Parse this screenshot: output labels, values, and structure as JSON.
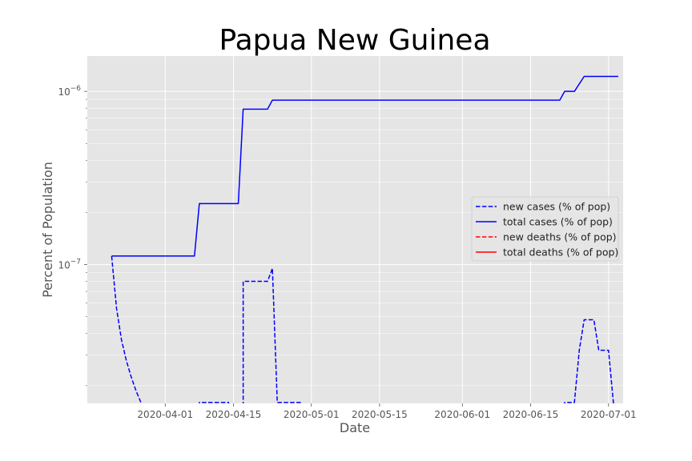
{
  "chart_data": {
    "type": "line",
    "title": "Papua New Guinea",
    "xlabel": "Date",
    "ylabel": "Percent of Population",
    "yscale": "log",
    "grid": true,
    "legend_location": "center-right",
    "x_ticks": [
      "2020-04-01",
      "2020-04-15",
      "2020-05-01",
      "2020-05-15",
      "2020-06-01",
      "2020-06-15",
      "2020-07-01"
    ],
    "y_ticks": [
      {
        "value": 1e-07,
        "base": "10",
        "exp": "−7"
      },
      {
        "value": 1e-06,
        "base": "10",
        "exp": "−6"
      }
    ],
    "xlim": [
      "2020-03-16",
      "2020-07-04"
    ],
    "ylim": [
      1.58e-08,
      1.6e-06
    ],
    "series": [
      {
        "name": "new cases (% of pop)",
        "color": "#0000ff",
        "dash": "dashed",
        "points": [
          [
            "2020-03-21",
            1.12e-07
          ],
          [
            "2020-03-22",
            5.6e-08
          ],
          [
            "2020-03-23",
            3.7e-08
          ],
          [
            "2020-03-24",
            2.8e-08
          ],
          [
            "2020-03-25",
            2.25e-08
          ],
          [
            "2020-03-26",
            1.87e-08
          ],
          [
            "2020-03-27",
            1.6e-08
          ],
          [
            "2020-03-27",
            1.4e-08
          ],
          null,
          [
            "2020-04-08",
            1.4e-08
          ],
          [
            "2020-04-08",
            1.6e-08
          ],
          [
            "2020-04-14",
            1.6e-08
          ],
          [
            "2020-04-14",
            1.4e-08
          ],
          null,
          [
            "2020-04-17",
            1.4e-08
          ],
          [
            "2020-04-17",
            8e-08
          ],
          [
            "2020-04-22",
            8e-08
          ],
          [
            "2020-04-23",
            9.5e-08
          ],
          [
            "2020-04-24",
            1.6e-08
          ],
          [
            "2020-04-29",
            1.6e-08
          ],
          [
            "2020-04-29",
            1.4e-08
          ],
          null,
          [
            "2020-06-22",
            1.4e-08
          ],
          [
            "2020-06-22",
            1.6e-08
          ],
          [
            "2020-06-24",
            1.6e-08
          ],
          [
            "2020-06-25",
            3.2e-08
          ],
          [
            "2020-06-26",
            4.8e-08
          ],
          [
            "2020-06-28",
            4.8e-08
          ],
          [
            "2020-06-29",
            3.2e-08
          ],
          [
            "2020-07-01",
            3.2e-08
          ],
          [
            "2020-07-02",
            1.6e-08
          ],
          [
            "2020-07-02",
            1.4e-08
          ]
        ]
      },
      {
        "name": "total cases (% of pop)",
        "color": "#0000ff",
        "dash": "solid",
        "points": [
          [
            "2020-03-21",
            1.12e-07
          ],
          [
            "2020-04-07",
            1.12e-07
          ],
          [
            "2020-04-08",
            2.25e-07
          ],
          [
            "2020-04-16",
            2.25e-07
          ],
          [
            "2020-04-17",
            7.9e-07
          ],
          [
            "2020-04-22",
            7.9e-07
          ],
          [
            "2020-04-23",
            8.9e-07
          ],
          [
            "2020-06-21",
            8.9e-07
          ],
          [
            "2020-06-22",
            1e-06
          ],
          [
            "2020-06-24",
            1e-06
          ],
          [
            "2020-06-26",
            1.22e-06
          ],
          [
            "2020-07-03",
            1.22e-06
          ]
        ]
      },
      {
        "name": "new deaths (% of pop)",
        "color": "#ff0000",
        "dash": "dashed",
        "points": []
      },
      {
        "name": "total deaths (% of pop)",
        "color": "#ff0000",
        "dash": "solid",
        "points": []
      }
    ]
  }
}
